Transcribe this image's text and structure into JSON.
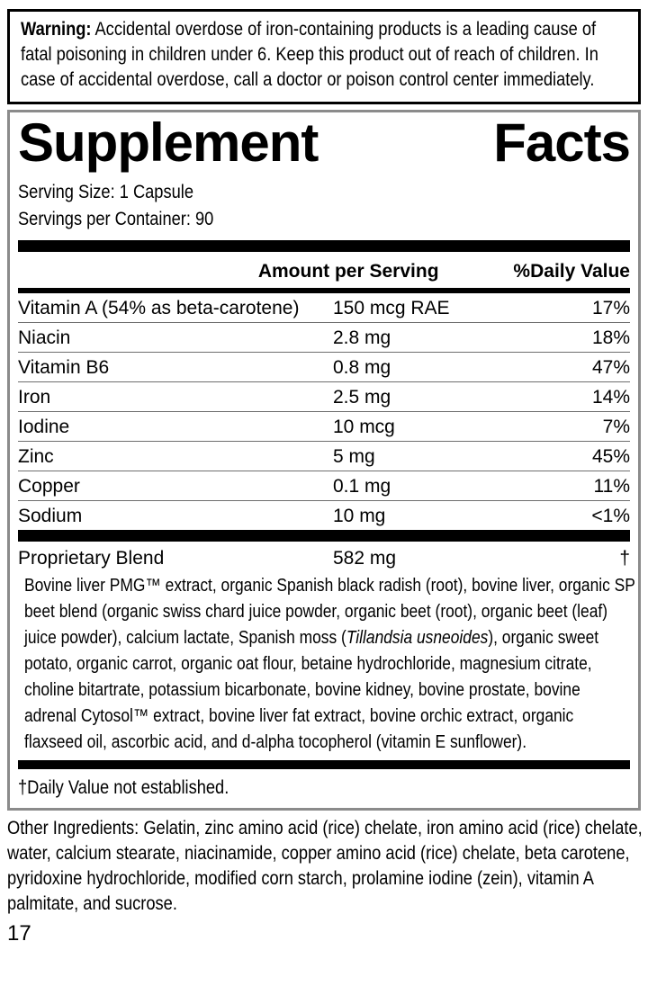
{
  "warning": {
    "label": "Warning:",
    "text": "Accidental overdose of iron-containing products is a leading cause of fatal poisoning in children under 6. Keep this product out of reach of children. In case of accidental overdose, call a doctor or poison control center immediately."
  },
  "panel": {
    "title": {
      "first": "Supplement",
      "second": "Facts"
    },
    "serving_size": "Serving Size: 1 Capsule",
    "servings_per_container": "Servings per Container: 90",
    "columns": {
      "amount": "Amount per Serving",
      "daily_value": "%Daily Value"
    },
    "rows": [
      {
        "name": "Vitamin A (54% as beta-carotene)",
        "amount": "150 mcg RAE",
        "daily_value": "17%"
      },
      {
        "name": "Niacin",
        "amount": "2.8 mg",
        "daily_value": "18%"
      },
      {
        "name": "Vitamin B6",
        "amount": "0.8 mg",
        "daily_value": "47%"
      },
      {
        "name": "Iron",
        "amount": "2.5 mg",
        "daily_value": "14%"
      },
      {
        "name": "Iodine",
        "amount": "10 mcg",
        "daily_value": "7%"
      },
      {
        "name": "Zinc",
        "amount": "5 mg",
        "daily_value": "45%"
      },
      {
        "name": "Copper",
        "amount": "0.1 mg",
        "daily_value": "11%"
      },
      {
        "name": "Sodium",
        "amount": "10 mg",
        "daily_value": "<1%"
      }
    ],
    "proprietary": {
      "name": "Proprietary Blend",
      "amount": "582 mg",
      "daily_value": "†"
    },
    "blend_description": {
      "part1": "Bovine liver PMG™ extract, organic Spanish black radish (root), bovine liver, organic SP beet blend (organic swiss chard juice powder, organic beet (root), organic beet (leaf) juice powder), calcium lactate, Spanish moss (",
      "species": "Tillandsia usneoides",
      "part2": "), organic sweet potato, organic carrot, organic oat flour, betaine hydrochloride, magnesium citrate, choline bitartrate, potassium bicarbonate, bovine kidney, bovine prostate, bovine adrenal Cytosol™ extract, bovine liver fat extract, bovine orchic extract, organic flaxseed oil, ascorbic acid, and d-alpha tocopherol (vitamin E sunflower)."
    },
    "footnote": "†Daily Value not established."
  },
  "other_ingredients": "Other Ingredients: Gelatin, zinc amino acid (rice) chelate, iron amino acid (rice) chelate, water, calcium stearate, niacinamide, copper amino acid (rice) chelate, beta carotene, pyridoxine hydrochloride, modified corn starch, prolamine iodine (zein), vitamin A palmitate, and sucrose.",
  "page_number": "17",
  "colors": {
    "warning_border": "#000000",
    "panel_border": "#8b8b8b",
    "divider_bar": "#000000",
    "row_separator": "#6e6e6e"
  }
}
